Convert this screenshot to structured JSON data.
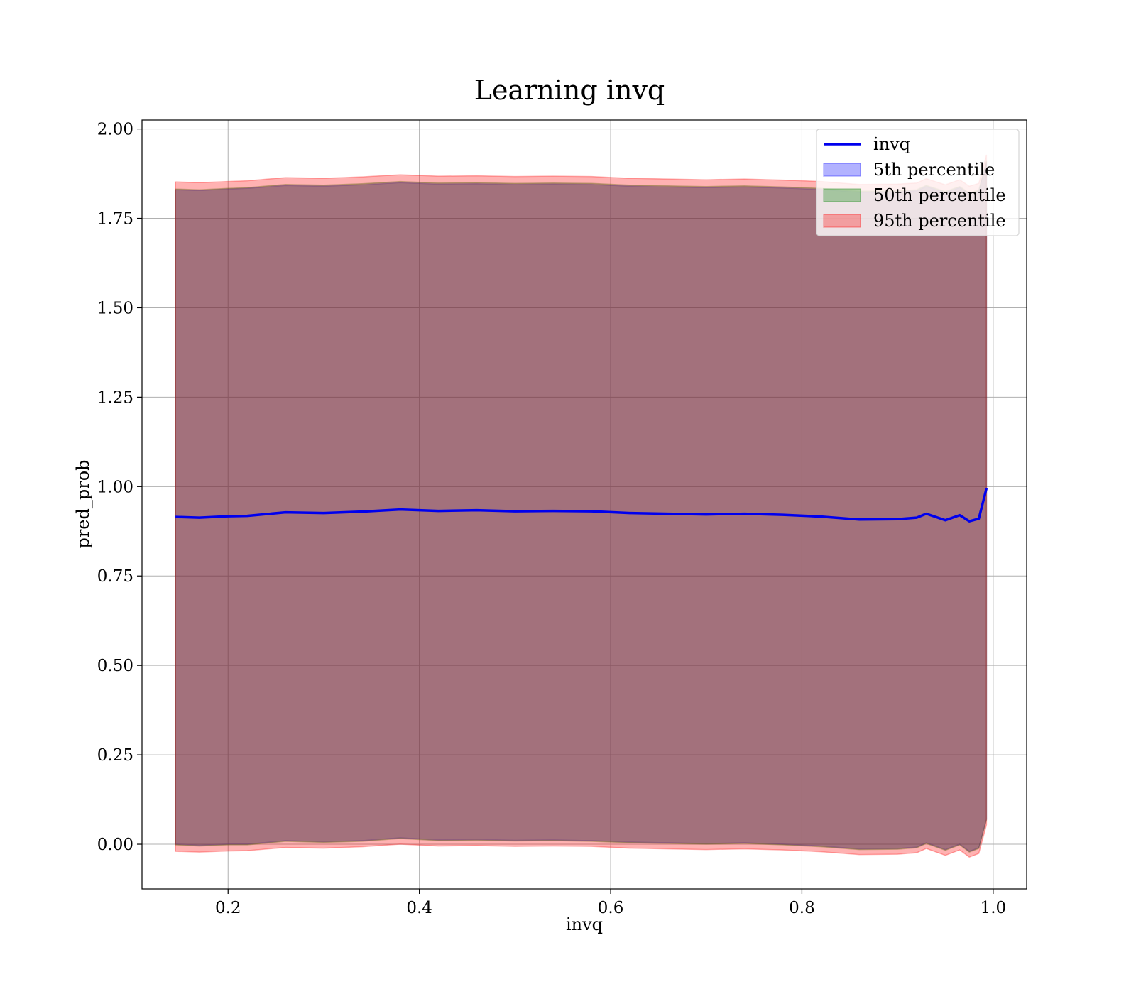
{
  "chart_data": {
    "type": "area",
    "title": "Learning invq",
    "xlabel": "invq",
    "ylabel": "pred_prob",
    "xlim": [
      0.11,
      1.035
    ],
    "ylim": [
      -0.125,
      2.025
    ],
    "xticks": [
      0.2,
      0.4,
      0.6,
      0.8,
      1.0
    ],
    "xtick_labels": [
      "0.2",
      "0.4",
      "0.6",
      "0.8",
      "1.0"
    ],
    "yticks": [
      0.0,
      0.25,
      0.5,
      0.75,
      1.0,
      1.25,
      1.5,
      1.75,
      2.0
    ],
    "ytick_labels": [
      "0.00",
      "0.25",
      "0.50",
      "0.75",
      "1.00",
      "1.25",
      "1.50",
      "1.75",
      "2.00"
    ],
    "grid": true,
    "legend_position": "top-right",
    "x": [
      0.145,
      0.17,
      0.2,
      0.22,
      0.26,
      0.3,
      0.34,
      0.38,
      0.42,
      0.46,
      0.5,
      0.54,
      0.58,
      0.62,
      0.66,
      0.7,
      0.74,
      0.78,
      0.82,
      0.86,
      0.9,
      0.92,
      0.93,
      0.95,
      0.965,
      0.975,
      0.985,
      0.993
    ],
    "series": [
      {
        "name": "invq",
        "kind": "line",
        "color": "#0000ee",
        "values": [
          0.915,
          0.913,
          0.917,
          0.918,
          0.928,
          0.926,
          0.93,
          0.936,
          0.932,
          0.934,
          0.931,
          0.932,
          0.931,
          0.926,
          0.924,
          0.922,
          0.924,
          0.921,
          0.916,
          0.908,
          0.909,
          0.913,
          0.924,
          0.906,
          0.92,
          0.903,
          0.91,
          0.995
        ]
      },
      {
        "name": "5th percentile",
        "kind": "band",
        "color": "#0000ff",
        "lower": [
          0.0,
          -0.003,
          0.0,
          0.0,
          0.01,
          0.007,
          0.01,
          0.018,
          0.012,
          0.013,
          0.011,
          0.012,
          0.01,
          0.006,
          0.004,
          0.002,
          0.004,
          0.0,
          -0.005,
          -0.013,
          -0.012,
          -0.008,
          0.004,
          -0.015,
          0.0,
          -0.02,
          -0.01,
          0.07
        ],
        "upper": [
          1.83,
          1.828,
          1.832,
          1.834,
          1.842,
          1.84,
          1.844,
          1.85,
          1.846,
          1.847,
          1.845,
          1.846,
          1.845,
          1.84,
          1.838,
          1.836,
          1.838,
          1.835,
          1.831,
          1.823,
          1.824,
          1.827,
          1.839,
          1.822,
          1.836,
          1.818,
          1.826,
          1.907
        ]
      },
      {
        "name": "50th percentile",
        "kind": "band",
        "color": "#008000",
        "lower": [
          -0.002,
          -0.005,
          -0.002,
          -0.002,
          0.008,
          0.005,
          0.008,
          0.016,
          0.01,
          0.011,
          0.009,
          0.01,
          0.008,
          0.004,
          0.002,
          0.0,
          0.002,
          -0.002,
          -0.007,
          -0.015,
          -0.014,
          -0.01,
          0.002,
          -0.017,
          -0.002,
          -0.022,
          -0.012,
          0.068
        ],
        "upper": [
          1.832,
          1.83,
          1.834,
          1.836,
          1.845,
          1.843,
          1.847,
          1.853,
          1.849,
          1.85,
          1.848,
          1.849,
          1.848,
          1.843,
          1.841,
          1.839,
          1.841,
          1.838,
          1.834,
          1.826,
          1.827,
          1.83,
          1.842,
          1.825,
          1.839,
          1.821,
          1.829,
          1.91
        ]
      },
      {
        "name": "95th percentile",
        "kind": "band",
        "color": "#ff0000",
        "lower": [
          -0.02,
          -0.022,
          -0.019,
          -0.018,
          -0.009,
          -0.011,
          -0.007,
          0.0,
          -0.005,
          -0.004,
          -0.006,
          -0.005,
          -0.006,
          -0.011,
          -0.013,
          -0.015,
          -0.013,
          -0.016,
          -0.021,
          -0.029,
          -0.028,
          -0.024,
          -0.012,
          -0.031,
          -0.016,
          -0.036,
          -0.026,
          0.054
        ],
        "upper": [
          1.852,
          1.85,
          1.853,
          1.855,
          1.864,
          1.862,
          1.866,
          1.872,
          1.868,
          1.869,
          1.867,
          1.868,
          1.867,
          1.862,
          1.86,
          1.858,
          1.86,
          1.857,
          1.853,
          1.845,
          1.846,
          1.849,
          1.861,
          1.844,
          1.858,
          1.84,
          1.848,
          1.928
        ]
      }
    ]
  }
}
